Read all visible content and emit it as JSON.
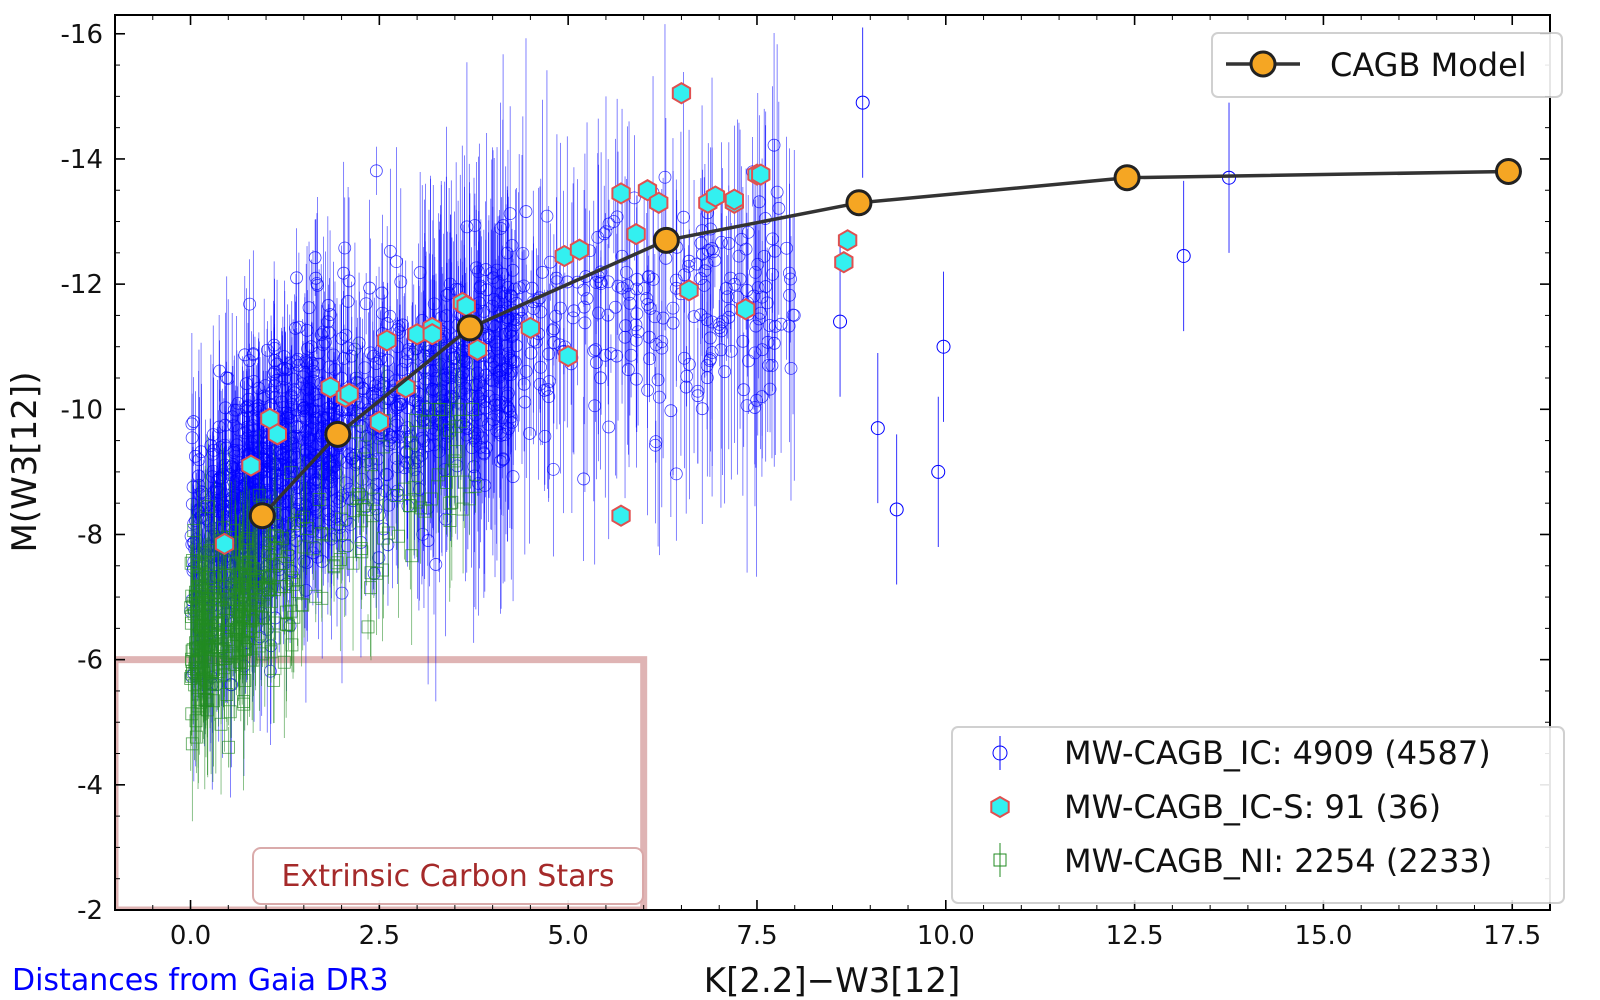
{
  "chart_data": {
    "type": "scatter",
    "xlabel": "K[2.2]−W3[12]",
    "ylabel": "M(W3[12])",
    "xlim": [
      -1.0,
      18.0
    ],
    "ylim": [
      -2,
      -16.3
    ],
    "x_ticks": [
      0.0,
      2.5,
      5.0,
      7.5,
      10.0,
      12.5,
      15.0,
      17.5
    ],
    "x_tick_labels": [
      "0.0",
      "2.5",
      "5.0",
      "7.5",
      "10.0",
      "12.5",
      "15.0",
      "17.5"
    ],
    "y_ticks": [
      -16,
      -14,
      -12,
      -10,
      -8,
      -6,
      -4,
      -2
    ],
    "y_tick_labels": [
      "-16",
      "-14",
      "-12",
      "-10",
      "-8",
      "-6",
      "-4",
      "-2"
    ],
    "grid": false,
    "series": [
      {
        "name": "MW-CAGB_IC: 4909 (4587)",
        "marker": "open-circle",
        "color": "#0000ff",
        "count": 4909,
        "count_with_distance": 4587,
        "cloud": {
          "x_range": [
            0.0,
            9.0
          ],
          "y_range": [
            -5.5,
            -15.5
          ],
          "note": "dense cloud of points following the CAGB model trend"
        },
        "outliers": [
          {
            "x": 9.1,
            "y": -9.7
          },
          {
            "x": 9.35,
            "y": -8.4
          },
          {
            "x": 9.9,
            "y": -9.0
          },
          {
            "x": 9.97,
            "y": -11.0
          },
          {
            "x": 13.15,
            "y": -12.45
          },
          {
            "x": 13.75,
            "y": -13.7
          },
          {
            "x": 8.9,
            "y": -14.9
          },
          {
            "x": 8.6,
            "y": -11.4
          }
        ]
      },
      {
        "name": "MW-CAGB_IC-S: 91 (36)",
        "marker": "hexagon",
        "color": "#33f0f0",
        "edge_color": "#e05050",
        "count": 91,
        "count_with_distance": 36,
        "points": [
          {
            "x": 0.45,
            "y": -7.85
          },
          {
            "x": 0.8,
            "y": -9.1
          },
          {
            "x": 1.05,
            "y": -9.85
          },
          {
            "x": 1.15,
            "y": -9.6
          },
          {
            "x": 1.85,
            "y": -10.35
          },
          {
            "x": 2.05,
            "y": -10.2
          },
          {
            "x": 2.1,
            "y": -10.25
          },
          {
            "x": 2.5,
            "y": -9.8
          },
          {
            "x": 2.6,
            "y": -11.1
          },
          {
            "x": 2.85,
            "y": -10.35
          },
          {
            "x": 3.0,
            "y": -11.2
          },
          {
            "x": 3.2,
            "y": -11.3
          },
          {
            "x": 3.2,
            "y": -11.2
          },
          {
            "x": 3.6,
            "y": -11.7
          },
          {
            "x": 3.8,
            "y": -10.95
          },
          {
            "x": 4.5,
            "y": -11.3
          },
          {
            "x": 4.95,
            "y": -12.45
          },
          {
            "x": 5.0,
            "y": -10.85
          },
          {
            "x": 5.15,
            "y": -12.55
          },
          {
            "x": 5.7,
            "y": -13.45
          },
          {
            "x": 5.7,
            "y": -8.3
          },
          {
            "x": 5.9,
            "y": -12.8
          },
          {
            "x": 6.05,
            "y": -13.5
          },
          {
            "x": 6.2,
            "y": -13.3
          },
          {
            "x": 6.5,
            "y": -15.05
          },
          {
            "x": 6.6,
            "y": -11.9
          },
          {
            "x": 6.85,
            "y": -13.3
          },
          {
            "x": 6.95,
            "y": -13.4
          },
          {
            "x": 7.2,
            "y": -13.3
          },
          {
            "x": 7.35,
            "y": -11.6
          },
          {
            "x": 7.5,
            "y": -13.75
          },
          {
            "x": 7.55,
            "y": -13.75
          },
          {
            "x": 8.65,
            "y": -12.35
          },
          {
            "x": 8.7,
            "y": -12.7
          },
          {
            "x": 7.2,
            "y": -13.35
          },
          {
            "x": 3.65,
            "y": -11.65
          }
        ]
      },
      {
        "name": "MW-CAGB_NI: 2254 (2233)",
        "marker": "open-square",
        "color": "#228b22",
        "count": 2254,
        "count_with_distance": 2233,
        "cloud": {
          "x_range": [
            -0.1,
            4.0
          ],
          "y_range": [
            -4.5,
            -10.0
          ],
          "note": "points concentrated at blue colours and faint magnitudes"
        }
      },
      {
        "name": "CAGB Model",
        "marker": "filled-circle-line",
        "color": "#f5a623",
        "line_color": "#333333",
        "points": [
          {
            "x": 0.95,
            "y": -8.3
          },
          {
            "x": 1.95,
            "y": -9.6
          },
          {
            "x": 3.7,
            "y": -11.3
          },
          {
            "x": 6.3,
            "y": -12.7
          },
          {
            "x": 8.85,
            "y": -13.3
          },
          {
            "x": 12.4,
            "y": -13.7
          },
          {
            "x": 17.45,
            "y": -13.8
          }
        ]
      }
    ],
    "regions": [
      {
        "label": "Extrinsic Carbon Stars",
        "x_range": [
          -1.0,
          6.0
        ],
        "y_range": [
          -6.0,
          -2.0
        ],
        "color": "#d9a7a7",
        "label_color": "#a52a2a"
      }
    ],
    "legends": [
      {
        "position": "top-right",
        "entries": [
          "CAGB Model"
        ]
      },
      {
        "position": "bottom-right",
        "entries": [
          "MW-CAGB_IC: 4909 (4587)",
          "MW-CAGB_IC-S: 91 (36)",
          "MW-CAGB_NI: 2254 (2233)"
        ]
      }
    ],
    "footnote": "Distances from Gaia DR3",
    "footnote_color": "#0000ff"
  }
}
